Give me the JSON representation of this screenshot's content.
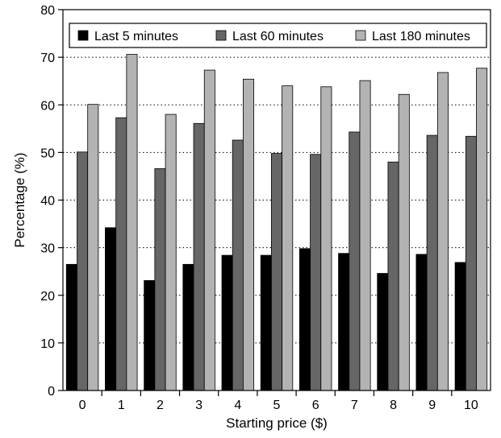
{
  "chart_data": {
    "type": "bar",
    "title": "",
    "xlabel": "Starting price ($)",
    "ylabel": "Percentage (%)",
    "categories": [
      "0",
      "1",
      "2",
      "3",
      "4",
      "5",
      "6",
      "7",
      "8",
      "9",
      "10"
    ],
    "ylim": [
      0,
      80
    ],
    "yticks": [
      0,
      10,
      20,
      30,
      40,
      50,
      60,
      70,
      80
    ],
    "grid": "dotted horizontal",
    "legend_position": "top",
    "series": [
      {
        "name": "Last 5 minutes",
        "color": "#000000",
        "values": [
          26.5,
          34.2,
          23.1,
          26.5,
          28.4,
          28.4,
          29.8,
          28.8,
          24.6,
          28.6,
          26.9
        ]
      },
      {
        "name": "Last 60 minutes",
        "color": "#666666",
        "values": [
          50.1,
          57.3,
          46.6,
          56.1,
          52.6,
          49.8,
          49.6,
          54.3,
          48.0,
          53.6,
          53.4
        ]
      },
      {
        "name": "Last 180 minutes",
        "color": "#b3b3b3",
        "values": [
          60.1,
          70.6,
          58.0,
          67.3,
          65.4,
          64.0,
          63.8,
          65.1,
          62.2,
          66.8,
          67.7
        ]
      }
    ]
  }
}
